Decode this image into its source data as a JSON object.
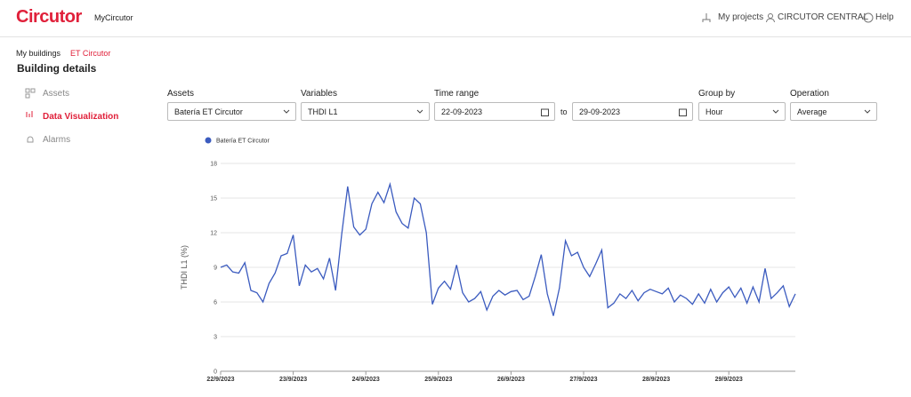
{
  "header": {
    "logo": "Circutor",
    "app": "MyCircutor",
    "projects": "My projects",
    "account": "CIRCUTOR CENTRAL",
    "help": "Help"
  },
  "breadcrumb": [
    "My buildings",
    "ET Circutor"
  ],
  "page_title": "Building details",
  "sidebar": [
    "Assets",
    "Data Visualization",
    "Alarms"
  ],
  "filters": {
    "assets": {
      "label": "Assets",
      "value": "Batería ET Circutor"
    },
    "variables": {
      "label": "Variables",
      "value": "THDI L1"
    },
    "time_range": {
      "label": "Time range",
      "from": "22-09-2023",
      "separator": "to",
      "to": "29-09-2023"
    },
    "group_by": {
      "label": "Group by",
      "value": "Hour"
    },
    "operation": {
      "label": "Operation",
      "value": "Average"
    }
  },
  "chart_data": {
    "type": "line",
    "y_label": "THDI L1 (%)",
    "ylim": [
      0,
      18
    ],
    "yticks": [
      0,
      3,
      6,
      9,
      12,
      15,
      18
    ],
    "grid": true,
    "legend": "top-left",
    "categories": [
      "22/9/2023",
      null,
      null,
      null,
      null,
      null,
      null,
      null,
      null,
      null,
      null,
      null,
      "23/9/2023",
      null,
      null,
      null,
      null,
      null,
      null,
      null,
      null,
      null,
      null,
      null,
      "24/9/2023",
      null,
      null,
      null,
      null,
      null,
      null,
      null,
      null,
      null,
      null,
      null,
      "25/9/2023",
      null,
      null,
      null,
      null,
      null,
      null,
      null,
      null,
      null,
      null,
      null,
      "26/9/2023",
      null,
      null,
      null,
      null,
      null,
      null,
      null,
      null,
      null,
      null,
      null,
      "27/9/2023",
      null,
      null,
      null,
      null,
      null,
      null,
      null,
      null,
      null,
      null,
      null,
      "28/9/2023",
      null,
      null,
      null,
      null,
      null,
      null,
      null,
      null,
      null,
      null,
      null,
      "29/9/2023",
      null,
      null,
      null,
      null,
      null,
      null,
      null,
      null,
      null,
      null,
      null
    ],
    "series": [
      {
        "name": "Batería ET Circutor",
        "color": "#3b5bbf",
        "values": [
          9.0,
          9.2,
          8.6,
          8.5,
          9.4,
          7.0,
          6.8,
          6.0,
          7.6,
          8.5,
          10.0,
          10.2,
          11.8,
          7.4,
          9.2,
          8.6,
          8.9,
          8.0,
          9.8,
          7.0,
          11.8,
          16.0,
          12.5,
          11.8,
          12.3,
          14.5,
          15.5,
          14.6,
          16.2,
          13.8,
          12.8,
          12.4,
          15.0,
          14.5,
          12.0,
          5.8,
          7.2,
          7.8,
          7.1,
          9.2,
          6.8,
          6.0,
          6.3,
          6.9,
          5.3,
          6.5,
          7.0,
          6.6,
          6.9,
          7.0,
          6.2,
          6.5,
          8.2,
          10.1,
          6.7,
          4.8,
          7.2,
          11.3,
          10.0,
          10.3,
          9.0,
          8.2,
          9.3,
          10.5,
          5.5,
          5.9,
          6.7,
          6.3,
          7.0,
          6.1,
          6.8,
          7.1,
          6.9,
          6.7,
          7.2,
          6.0,
          6.6,
          6.3,
          5.8,
          6.7,
          5.9,
          7.1,
          6.0,
          6.8,
          7.3,
          6.4,
          7.2,
          5.9,
          7.3,
          6.0,
          8.9,
          6.3,
          6.8,
          7.4,
          5.6,
          6.7
        ]
      }
    ]
  }
}
